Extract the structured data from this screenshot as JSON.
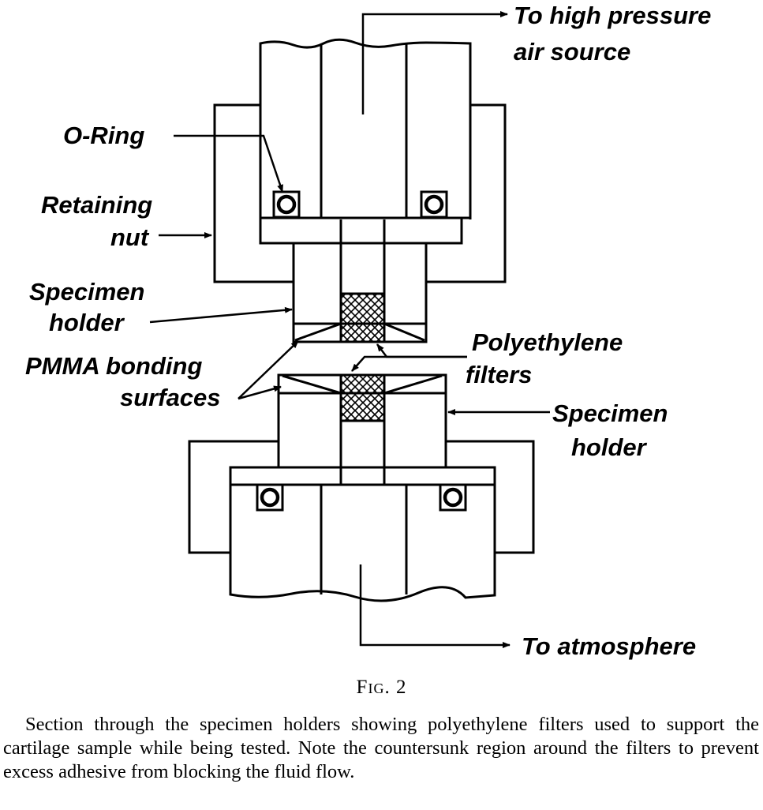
{
  "labels": {
    "high_pressure_line1": "To high pressure",
    "high_pressure_line2": "air source",
    "o_ring": "O-Ring",
    "retaining_nut_line1": "Retaining",
    "retaining_nut_line2": "nut",
    "specimen_holder_top_line1": "Specimen",
    "specimen_holder_top_line2": "holder",
    "pmma_line1": "PMMA bonding",
    "pmma_line2": "surfaces",
    "polyethylene_line1": "Polyethylene",
    "polyethylene_line2": "filters",
    "specimen_holder_bottom_line1": "Specimen",
    "specimen_holder_bottom_line2": "holder",
    "to_atmosphere": "To atmosphere"
  },
  "caption": {
    "fig_prefix": "F",
    "fig_small": "IG",
    "fig_suffix": ". 2",
    "text": "Section through the specimen holders showing polyethylene filters used to support the cartilage sample while being tested. Note the countersunk region around the filters to prevent excess adhesive from blocking the fluid flow."
  }
}
